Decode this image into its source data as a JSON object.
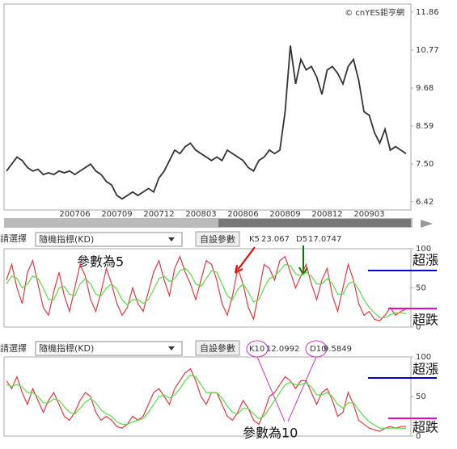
{
  "chart_data": [
    {
      "type": "line",
      "source": "© cnYES鉅亨網",
      "categories": [
        null,
        null,
        null,
        null,
        null,
        null,
        null,
        null,
        null,
        null,
        null,
        null,
        null,
        "200706",
        null,
        null,
        null,
        null,
        null,
        null,
        null,
        "200709",
        null,
        null,
        null,
        null,
        null,
        null,
        null,
        "200712",
        null,
        null,
        null,
        null,
        null,
        null,
        null,
        "200803",
        null,
        null,
        null,
        null,
        null,
        null,
        null,
        "200806",
        null,
        null,
        null,
        null,
        null,
        null,
        null,
        "200809",
        null,
        null,
        null,
        null,
        null,
        null,
        null,
        "200812",
        null,
        null,
        null,
        null,
        null,
        null,
        null,
        "200903",
        null,
        null,
        null,
        null,
        null,
        null,
        null
      ],
      "series": [
        {
          "color": "#333333",
          "values": [
            7.3,
            7.5,
            7.7,
            7.6,
            7.4,
            7.3,
            7.35,
            7.2,
            7.25,
            7.2,
            7.3,
            7.25,
            7.3,
            7.2,
            7.3,
            7.4,
            7.5,
            7.3,
            7.2,
            7.0,
            6.9,
            6.6,
            6.5,
            6.6,
            6.7,
            6.6,
            6.7,
            6.8,
            6.7,
            7.1,
            7.3,
            7.6,
            7.9,
            7.8,
            8.0,
            8.1,
            7.9,
            7.8,
            7.7,
            7.6,
            7.7,
            7.6,
            7.9,
            7.8,
            7.7,
            7.6,
            7.4,
            7.3,
            7.6,
            7.7,
            7.9,
            7.8,
            7.9,
            9.0,
            10.9,
            9.8,
            10.5,
            10.2,
            10.3,
            10.0,
            9.5,
            10.2,
            10.3,
            10.1,
            9.8,
            10.3,
            10.5,
            9.9,
            9.0,
            8.9,
            8.4,
            8.1,
            8.5,
            7.9,
            8.0,
            7.9,
            7.8
          ]
        }
      ],
      "ylim": [
        6.23,
        12.02
      ],
      "yticks": [
        11.86,
        10.77,
        9.68,
        8.59,
        {
          "value": 7.5,
          "label": "7.50"
        },
        6.42
      ]
    },
    {
      "type": "line",
      "annotation": "參數為5",
      "overbought_label": "超漲",
      "oversold_label": "超跌",
      "series": [
        {
          "name": "K5",
          "color": "#e8383d",
          "values": [
            60,
            80,
            50,
            30,
            70,
            85,
            55,
            25,
            15,
            45,
            70,
            40,
            20,
            50,
            80,
            65,
            35,
            20,
            45,
            75,
            55,
            30,
            15,
            25,
            50,
            30,
            20,
            45,
            70,
            85,
            60,
            40,
            75,
            90,
            70,
            55,
            35,
            60,
            85,
            80,
            60,
            30,
            15,
            40,
            75,
            55,
            25,
            10,
            45,
            80,
            75,
            60,
            85,
            90,
            70,
            50,
            65,
            80,
            55,
            35,
            60,
            75,
            40,
            20,
            50,
            80,
            60,
            30,
            15,
            20,
            10,
            8,
            15,
            25,
            15,
            20,
            23.067
          ]
        },
        {
          "name": "D5",
          "color": "#55dd44",
          "values": [
            55,
            65,
            62,
            50,
            55,
            65,
            62,
            50,
            35,
            35,
            50,
            52,
            42,
            40,
            55,
            62,
            55,
            42,
            40,
            50,
            55,
            48,
            35,
            28,
            35,
            35,
            30,
            35,
            48,
            62,
            65,
            58,
            62,
            72,
            75,
            68,
            55,
            52,
            62,
            72,
            70,
            55,
            40,
            35,
            48,
            55,
            45,
            32,
            35,
            50,
            62,
            65,
            72,
            80,
            78,
            68,
            65,
            70,
            65,
            55,
            55,
            62,
            55,
            42,
            42,
            55,
            58,
            48,
            35,
            25,
            18,
            12,
            12,
            16,
            18,
            18,
            17.0747
          ]
        }
      ],
      "ylim": [
        0,
        100
      ],
      "yticks": [
        0,
        50,
        100
      ]
    },
    {
      "type": "line",
      "annotation": "參數為10",
      "overbought_label": "超漲",
      "oversold_label": "超跌",
      "series": [
        {
          "name": "K10",
          "color": "#e8383d",
          "values": [
            70,
            60,
            75,
            55,
            40,
            60,
            45,
            30,
            45,
            55,
            40,
            25,
            20,
            30,
            45,
            55,
            50,
            30,
            20,
            25,
            20,
            12,
            10,
            15,
            25,
            20,
            25,
            40,
            55,
            60,
            50,
            40,
            60,
            70,
            80,
            85,
            70,
            50,
            40,
            55,
            55,
            40,
            25,
            20,
            30,
            45,
            35,
            20,
            15,
            30,
            50,
            55,
            65,
            75,
            70,
            60,
            70,
            70,
            55,
            40,
            55,
            60,
            45,
            25,
            30,
            55,
            40,
            20,
            15,
            10,
            8,
            6,
            10,
            12,
            10,
            12,
            12.0992
          ]
        },
        {
          "name": "D10",
          "color": "#55dd44",
          "values": [
            65,
            63,
            65,
            62,
            55,
            55,
            50,
            42,
            42,
            47,
            45,
            37,
            30,
            28,
            35,
            43,
            47,
            42,
            33,
            28,
            25,
            18,
            15,
            15,
            18,
            20,
            22,
            30,
            40,
            50,
            52,
            48,
            52,
            60,
            70,
            77,
            75,
            65,
            55,
            55,
            55,
            48,
            38,
            30,
            28,
            35,
            35,
            28,
            22,
            25,
            35,
            45,
            55,
            65,
            68,
            65,
            65,
            67,
            62,
            52,
            52,
            55,
            50,
            40,
            35,
            42,
            42,
            33,
            25,
            18,
            14,
            10,
            10,
            10,
            10,
            10,
            9.5849
          ]
        }
      ],
      "ylim": [
        0,
        100
      ],
      "yticks": [
        0,
        50,
        100
      ]
    }
  ],
  "controls": [
    {
      "label": "請選擇",
      "select": "隨機指標(KD)",
      "button": "自設參數"
    },
    {
      "label": "請選擇",
      "select": "隨機指標(KD)",
      "button": "自設參數"
    }
  ]
}
